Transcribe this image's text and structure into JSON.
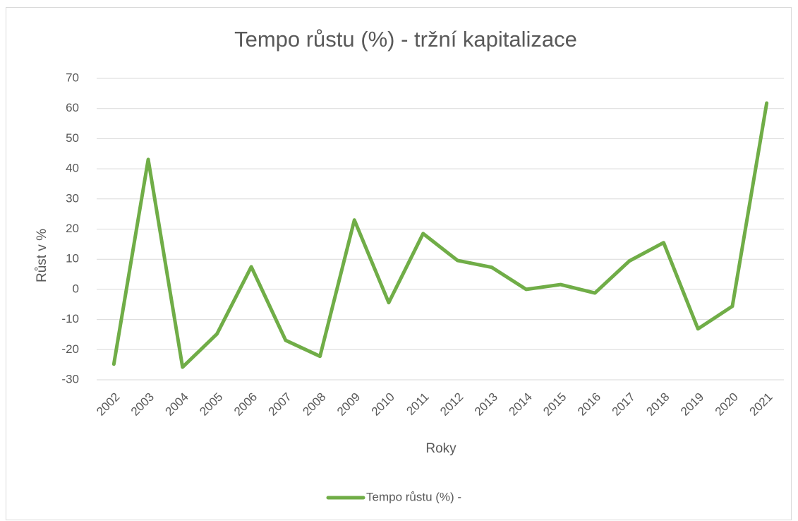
{
  "chart_data": {
    "type": "line",
    "title": "Tempo růstu (%) - tržní kapitalizace",
    "x_label": "Roky",
    "y_label": "Růst v %",
    "categories": [
      "2002",
      "2003",
      "2004",
      "2005",
      "2006",
      "2007",
      "2008",
      "2009",
      "2010",
      "2011",
      "2012",
      "2013",
      "2014",
      "2015",
      "2016",
      "2017",
      "2018",
      "2019",
      "2020",
      "2021"
    ],
    "series": [
      {
        "name": "Tempo růstu (%) -",
        "color": "#70ad47",
        "values": [
          -24.8,
          43.1,
          -25.8,
          -14.8,
          7.5,
          -16.9,
          -22.2,
          23,
          -4.4,
          18.5,
          9.6,
          7.3,
          0,
          1.6,
          -1.2,
          9.4,
          15.5,
          -13.1,
          -5.6,
          61.8
        ]
      }
    ],
    "ylim": [
      -30,
      70
    ],
    "yticks": [
      -30,
      -20,
      -10,
      0,
      10,
      20,
      30,
      40,
      50,
      60,
      70
    ],
    "grid": true,
    "legend": "bottom"
  }
}
